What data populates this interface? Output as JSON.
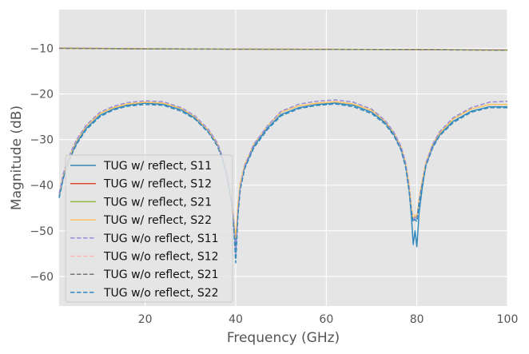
{
  "chart_data": {
    "type": "line",
    "title": "",
    "xlabel": "Frequency (GHz)",
    "ylabel": "Magnitude (dB)",
    "xlim": [
      1,
      100
    ],
    "ylim": [
      -66.5,
      -1.5
    ],
    "xticks": [
      20,
      40,
      60,
      80,
      100
    ],
    "yticks": [
      -10,
      -20,
      -30,
      -40,
      -50,
      -60
    ],
    "xtick_labels": [
      "20",
      "40",
      "60",
      "80",
      "100"
    ],
    "ytick_labels": [
      "−10",
      "−20",
      "−30",
      "−40",
      "−50",
      "−60"
    ],
    "grid": true,
    "legend_position": "lower-left",
    "colors": {
      "background": "#E5E5E5",
      "grid": "#FFFFFF"
    },
    "series": [
      {
        "name": "TUG w/ reflect, S11",
        "color": "#348ABD",
        "dash": "solid",
        "x": [
          1,
          2,
          3,
          4,
          5,
          7,
          10,
          13,
          16,
          20,
          24,
          28,
          31,
          34,
          36,
          37,
          38,
          39,
          39.6,
          40,
          40.5,
          41,
          42,
          44,
          47,
          50,
          54,
          58,
          62,
          66,
          70,
          73,
          75,
          76.5,
          77.5,
          78.3,
          78.8,
          79.2,
          79.6,
          80,
          80.5,
          81.2,
          82,
          83.5,
          85,
          88,
          92,
          96,
          100
        ],
        "y": [
          -42.5,
          -38,
          -35,
          -32.5,
          -30.5,
          -27.5,
          -24.7,
          -23.3,
          -22.5,
          -22,
          -22.3,
          -23.5,
          -25.3,
          -28.2,
          -31.2,
          -34,
          -37.6,
          -43,
          -49,
          -53,
          -45,
          -40,
          -36,
          -31.5,
          -27.5,
          -24.5,
          -23,
          -22.3,
          -22,
          -22.5,
          -24,
          -26.3,
          -29,
          -32,
          -35.5,
          -41,
          -47,
          -53,
          -50,
          -53.5,
          -46,
          -40.5,
          -35.5,
          -31.5,
          -29,
          -26,
          -23.8,
          -22.8,
          -22.8
        ]
      },
      {
        "name": "TUG w/ reflect, S12",
        "color": "#E24A33",
        "dash": "solid",
        "x": [
          1,
          20,
          40,
          60,
          80,
          100
        ],
        "y": [
          -9.95,
          -10.1,
          -10.15,
          -10.2,
          -10.25,
          -10.35
        ]
      },
      {
        "name": "TUG w/ reflect, S21",
        "color": "#8EBA42",
        "dash": "solid",
        "x": [
          1,
          20,
          40,
          60,
          80,
          100
        ],
        "y": [
          -9.97,
          -10.1,
          -10.15,
          -10.2,
          -10.25,
          -10.37
        ]
      },
      {
        "name": "TUG w/ reflect, S22",
        "color": "#FBC15E",
        "dash": "solid",
        "x": [
          1,
          2,
          3,
          4,
          5,
          7,
          10,
          13,
          16,
          20,
          24,
          28,
          31,
          34,
          36,
          37,
          38,
          39,
          39.6,
          40,
          40.5,
          41,
          42,
          44,
          47,
          50,
          54,
          58,
          62,
          66,
          70,
          73,
          75,
          76.5,
          77.5,
          78.3,
          78.8,
          79.2,
          79.6,
          80,
          80.5,
          81.2,
          82,
          83.5,
          85,
          88,
          92,
          96,
          100
        ],
        "y": [
          -42,
          -37.5,
          -34.6,
          -32,
          -30,
          -27,
          -24.3,
          -23,
          -22.2,
          -21.8,
          -22,
          -23.2,
          -25,
          -28,
          -31,
          -33.8,
          -37.3,
          -42.5,
          -48,
          -51.5,
          -44.5,
          -39.5,
          -35.5,
          -31,
          -27,
          -24,
          -22.6,
          -22,
          -21.7,
          -22.2,
          -23.6,
          -26,
          -28.6,
          -31.6,
          -35,
          -40,
          -45,
          -47.5,
          -46.5,
          -47,
          -43,
          -39,
          -35,
          -31,
          -28.6,
          -25.5,
          -23.3,
          -22.3,
          -22.3
        ]
      },
      {
        "name": "TUG w/o reflect, S11",
        "color": "#988ED5",
        "dash": "dashed",
        "x": [
          1,
          2,
          3,
          4,
          5,
          7,
          10,
          13,
          16,
          20,
          24,
          28,
          31,
          34,
          36,
          37,
          38,
          39,
          39.6,
          40,
          40.5,
          41,
          42,
          44,
          47,
          50,
          54,
          58,
          62,
          66,
          70,
          73,
          75,
          76.5,
          77.5,
          78.3,
          78.8,
          79.2,
          79.6,
          80,
          80.5,
          81.2,
          82,
          83.5,
          85,
          88,
          92,
          96,
          100
        ],
        "y": [
          -41.8,
          -37.2,
          -34.3,
          -31.8,
          -29.8,
          -26.8,
          -24,
          -22.7,
          -21.9,
          -21.5,
          -21.7,
          -23,
          -24.8,
          -27.8,
          -30.8,
          -33.6,
          -37,
          -42.5,
          -48.5,
          -55,
          -46,
          -40.3,
          -35.7,
          -31,
          -27,
          -23.8,
          -22.2,
          -21.6,
          -21.3,
          -21.8,
          -23.3,
          -25.8,
          -28.5,
          -31.5,
          -35,
          -40.5,
          -45.5,
          -48,
          -47,
          -47.5,
          -43.5,
          -39.5,
          -35.2,
          -31,
          -28.3,
          -25.2,
          -23,
          -21.8,
          -21.6
        ]
      },
      {
        "name": "TUG w/o reflect, S12",
        "color": "#FFB5B8",
        "dash": "dashed",
        "x": [
          1,
          20,
          40,
          60,
          80,
          100
        ],
        "y": [
          -9.93,
          -10.08,
          -10.13,
          -10.18,
          -10.23,
          -10.33
        ]
      },
      {
        "name": "TUG w/o reflect, S21",
        "color": "#777777",
        "dash": "dashed",
        "x": [
          1,
          20,
          40,
          60,
          80,
          100
        ],
        "y": [
          -9.98,
          -10.12,
          -10.17,
          -10.22,
          -10.27,
          -10.4
        ]
      },
      {
        "name": "TUG w/o reflect, S22",
        "color": "#348ABD",
        "dash": "dashed",
        "x": [
          1,
          2,
          3,
          4,
          5,
          7,
          10,
          13,
          16,
          20,
          24,
          28,
          31,
          34,
          36,
          37,
          38,
          39,
          39.6,
          40,
          40.5,
          41,
          42,
          44,
          47,
          50,
          54,
          58,
          62,
          66,
          70,
          73,
          75,
          76.5,
          77.5,
          78.3,
          78.8,
          79.2,
          79.6,
          80,
          80.5,
          81.2,
          82,
          83.5,
          85,
          88,
          92,
          96,
          100
        ],
        "y": [
          -42.8,
          -38.2,
          -35.3,
          -32.8,
          -30.8,
          -27.8,
          -25,
          -23.5,
          -22.7,
          -22.3,
          -22.5,
          -23.8,
          -25.5,
          -28.5,
          -31.5,
          -34.3,
          -38,
          -43.5,
          -50,
          -57,
          -46.5,
          -41,
          -36.3,
          -31.8,
          -27.8,
          -24.8,
          -23.2,
          -22.5,
          -22.2,
          -22.8,
          -24.3,
          -26.6,
          -29.3,
          -32.3,
          -36,
          -41.5,
          -46,
          -48,
          -47.5,
          -48,
          -44,
          -40,
          -35.8,
          -31.8,
          -29.2,
          -26.3,
          -24,
          -23,
          -23
        ]
      }
    ]
  }
}
